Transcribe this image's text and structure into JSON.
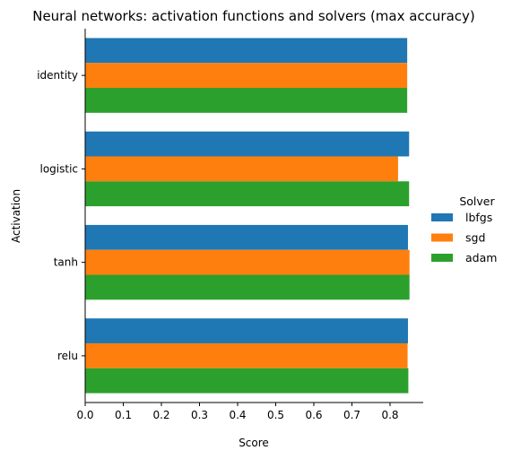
{
  "chart_data": {
    "type": "bar",
    "orientation": "horizontal",
    "title": "Neural networks: activation functions and solvers (max accuracy)",
    "xlabel": "Score",
    "ylabel": "Activation",
    "categories": [
      "identity",
      "logistic",
      "tanh",
      "relu"
    ],
    "series": [
      {
        "name": "lbfgs",
        "color": "#1f77b4",
        "values": [
          0.845,
          0.85,
          0.847,
          0.847
        ]
      },
      {
        "name": "sgd",
        "color": "#ff7f0e",
        "values": [
          0.845,
          0.821,
          0.851,
          0.846
        ]
      },
      {
        "name": "adam",
        "color": "#2ca02c",
        "values": [
          0.845,
          0.85,
          0.851,
          0.848
        ]
      }
    ],
    "xlim": [
      0,
      0.89
    ],
    "xticks": [
      "0.0",
      "0.1",
      "0.2",
      "0.3",
      "0.4",
      "0.5",
      "0.6",
      "0.7",
      "0.8"
    ],
    "grid": false,
    "legend": {
      "title": "Solver",
      "placement": "right"
    }
  }
}
